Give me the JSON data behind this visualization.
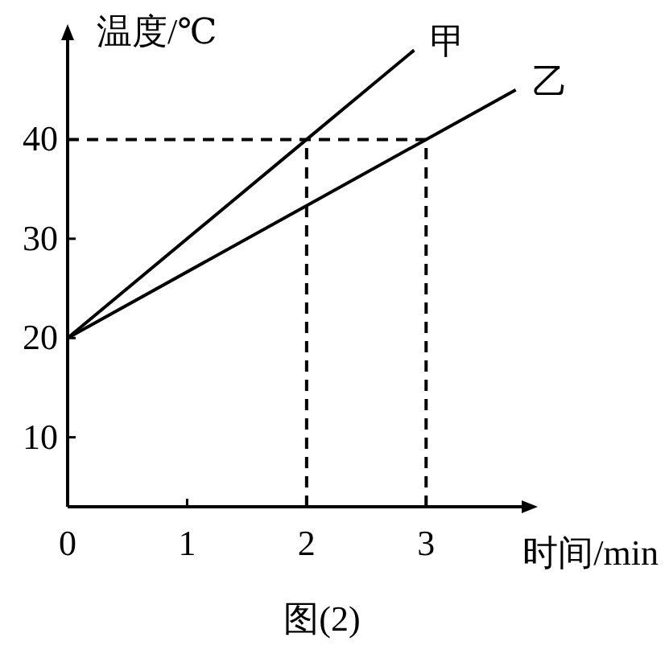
{
  "chart_data": {
    "type": "line",
    "xlabel": "时间/min",
    "ylabel": "温度/℃",
    "annotations": [
      "图(2)"
    ],
    "xlim": [
      0,
      3.8
    ],
    "ylim": [
      3,
      50
    ],
    "xticks": [
      0,
      1,
      2,
      3
    ],
    "yticks": [
      10,
      20,
      30,
      40
    ],
    "grid": false,
    "legend": false,
    "series": [
      {
        "name": "甲",
        "color": "#000000",
        "x": [
          0,
          2,
          2.9
        ],
        "values": [
          20,
          40,
          49
        ],
        "line_style": "solid"
      },
      {
        "name": "乙",
        "color": "#000000",
        "x": [
          0,
          3,
          3.75
        ],
        "values": [
          20,
          40,
          45
        ],
        "line_style": "solid"
      }
    ],
    "ref_lines": [
      {
        "axis": "y",
        "value": 40,
        "color": "#000000",
        "line_style": "dashed"
      },
      {
        "axis": "x",
        "value": 2,
        "color": "#000000",
        "line_style": "dashed"
      },
      {
        "axis": "x",
        "value": 3,
        "color": "#000000",
        "line_style": "dashed"
      }
    ]
  }
}
